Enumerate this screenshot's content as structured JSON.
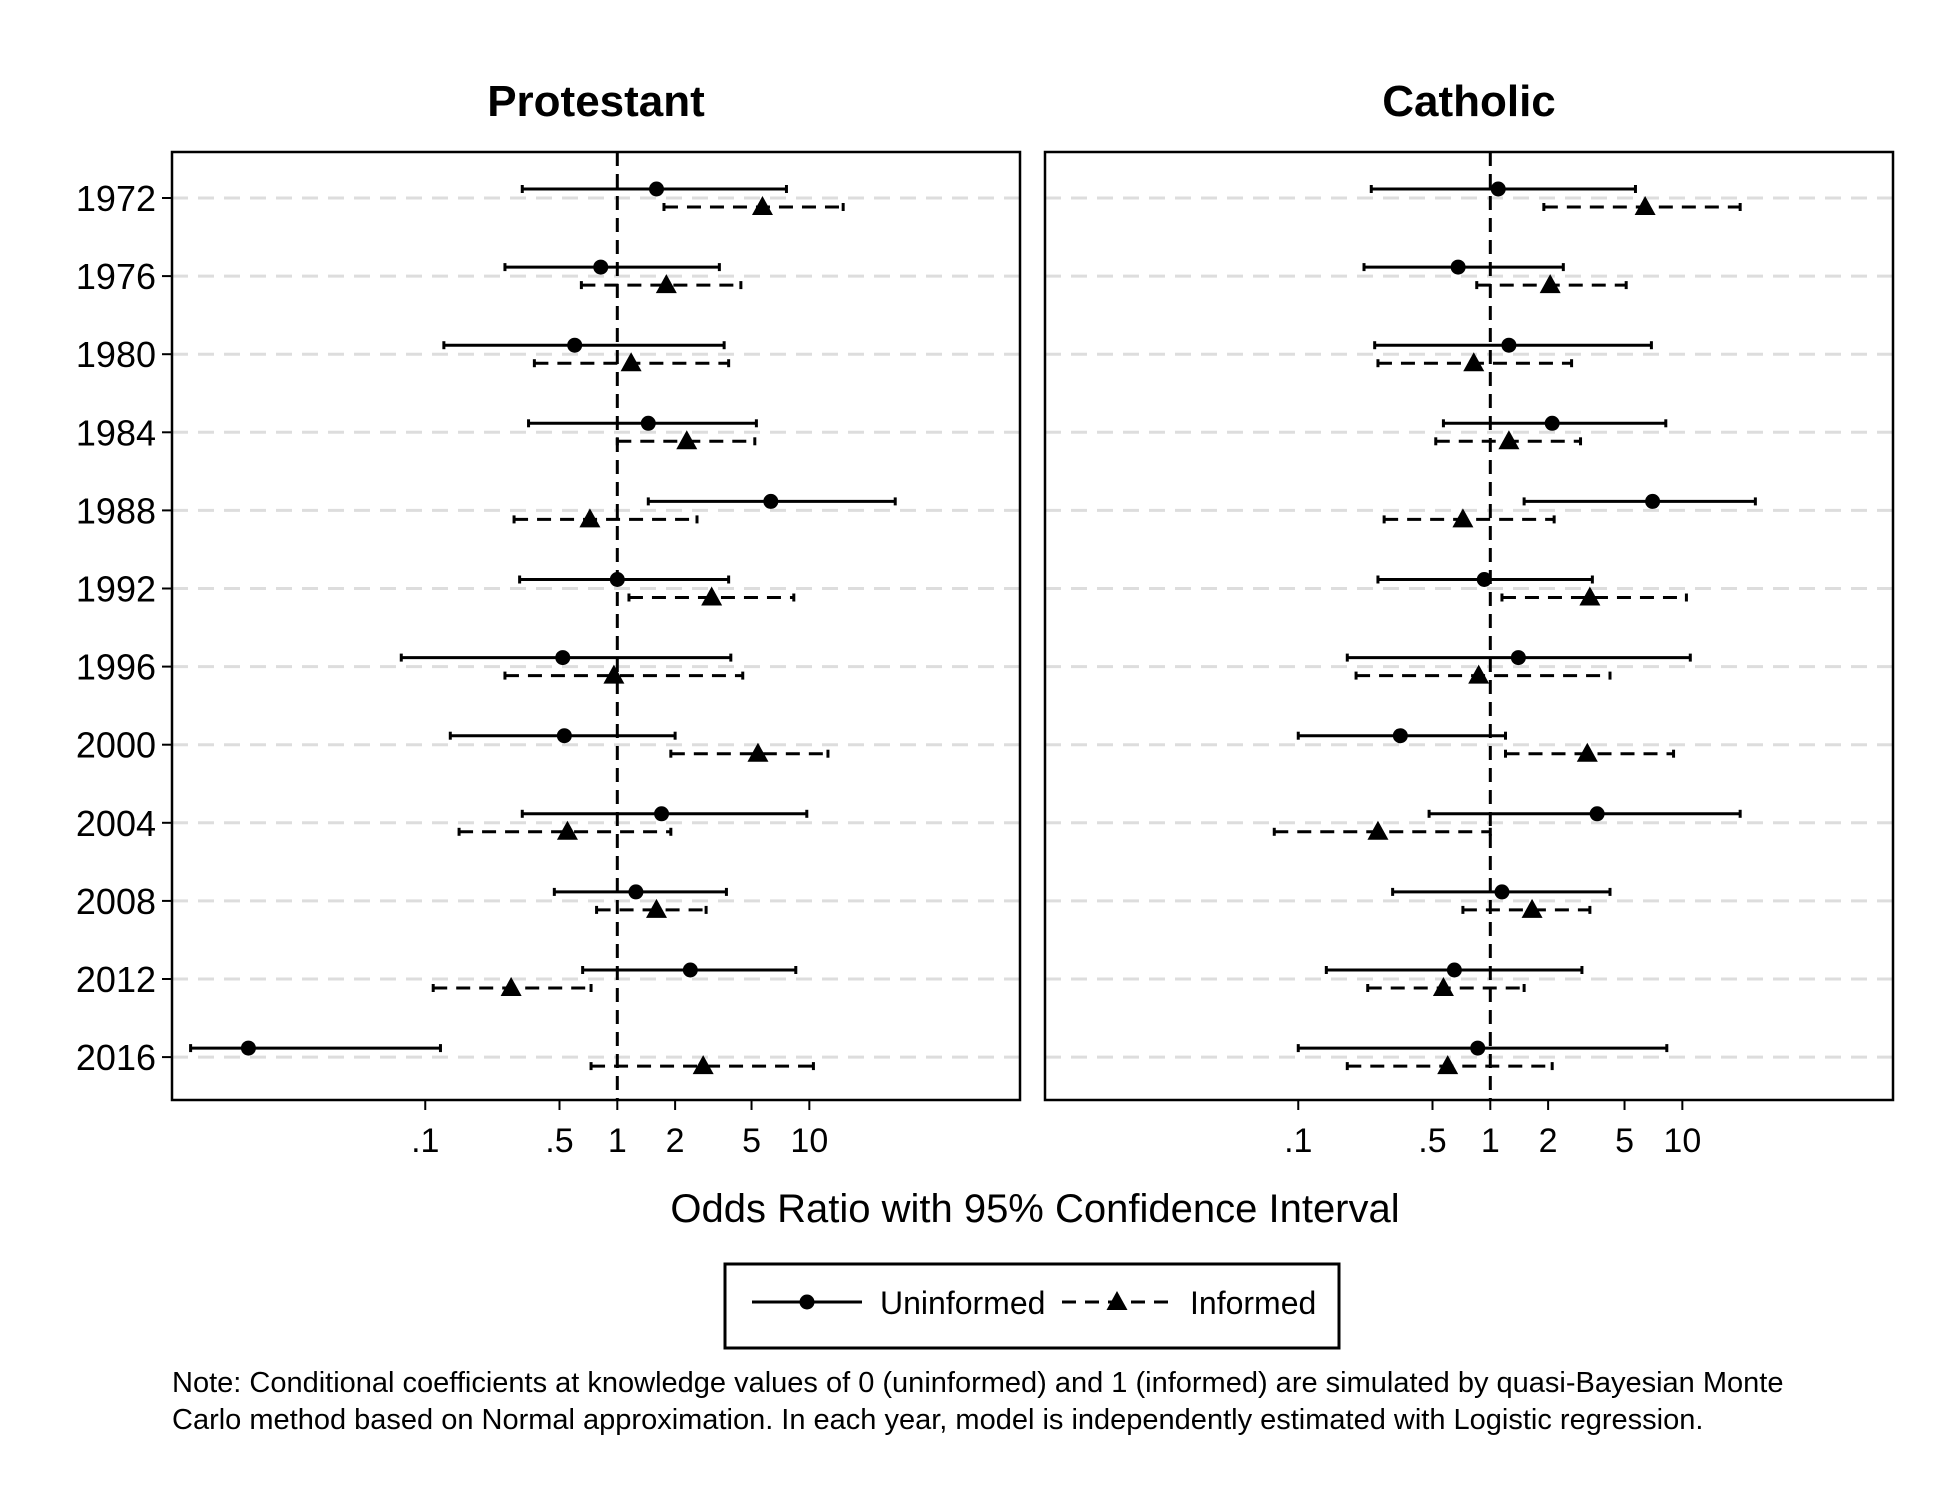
{
  "chart_data": {
    "type": "scatter",
    "subtype": "forest-plot",
    "x_scale": "log",
    "xlabel": "Odds Ratio with 95% Confidence Interval",
    "x_ticks": [
      {
        "value": 0.1,
        "label": ".1"
      },
      {
        "value": 0.5,
        "label": ".5"
      },
      {
        "value": 1,
        "label": "1"
      },
      {
        "value": 2,
        "label": "2"
      },
      {
        "value": 5,
        "label": "5"
      },
      {
        "value": 10,
        "label": "10"
      }
    ],
    "xlim": [
      0.0048,
      125
    ],
    "reference_line": 1,
    "years": [
      "1972",
      "1976",
      "1980",
      "1984",
      "1988",
      "1992",
      "1996",
      "2000",
      "2004",
      "2008",
      "2012",
      "2016"
    ],
    "legend": {
      "position": "bottom",
      "entries": [
        {
          "series": "uninformed",
          "label": "Uninformed"
        },
        {
          "series": "informed",
          "label": "Informed"
        }
      ]
    },
    "panels": [
      {
        "title": "Protestant",
        "uninformed": {
          "est": [
            1.6,
            0.82,
            0.6,
            1.45,
            6.3,
            1.0,
            0.52,
            0.53,
            1.7,
            1.25,
            2.4,
            0.012
          ],
          "lo": [
            0.32,
            0.26,
            0.125,
            0.345,
            1.45,
            0.31,
            0.075,
            0.135,
            0.32,
            0.47,
            0.66,
            0.006
          ],
          "hi": [
            7.6,
            3.4,
            3.6,
            5.3,
            28,
            3.8,
            3.9,
            2.0,
            9.7,
            3.7,
            8.5,
            0.12
          ]
        },
        "informed": {
          "est": [
            5.7,
            1.8,
            1.18,
            2.3,
            0.72,
            3.1,
            0.96,
            5.4,
            0.55,
            1.6,
            0.28,
            2.8
          ],
          "lo": [
            1.75,
            0.65,
            0.37,
            1.0,
            0.29,
            1.15,
            0.26,
            1.9,
            0.15,
            0.78,
            0.11,
            0.73
          ],
          "hi": [
            15,
            4.4,
            3.8,
            5.2,
            2.6,
            8.3,
            4.5,
            12.5,
            1.9,
            2.9,
            0.73,
            10.5
          ]
        }
      },
      {
        "title": "Catholic",
        "uninformed": {
          "est": [
            1.1,
            0.68,
            1.25,
            2.1,
            7.0,
            0.93,
            1.4,
            0.34,
            3.6,
            1.15,
            0.65,
            0.86
          ],
          "lo": [
            0.24,
            0.22,
            0.25,
            0.57,
            1.5,
            0.26,
            0.18,
            0.1,
            0.48,
            0.31,
            0.14,
            0.1
          ],
          "hi": [
            5.7,
            2.4,
            6.9,
            8.2,
            24,
            3.4,
            11,
            1.2,
            20,
            4.2,
            3.0,
            8.3
          ]
        },
        "informed": {
          "est": [
            6.4,
            2.05,
            0.82,
            1.25,
            0.72,
            3.3,
            0.87,
            3.2,
            0.26,
            1.65,
            0.57,
            0.6
          ],
          "lo": [
            1.9,
            0.85,
            0.26,
            0.52,
            0.28,
            1.15,
            0.2,
            1.2,
            0.075,
            0.72,
            0.23,
            0.18
          ],
          "hi": [
            20,
            5.1,
            2.65,
            2.95,
            2.15,
            10.5,
            4.2,
            9.0,
            1.0,
            3.3,
            1.5,
            2.1
          ]
        }
      }
    ]
  },
  "note": "Note: Conditional coefficients at knowledge values of 0 (uninformed) and 1 (informed) are simulated by quasi-Bayesian Monte\nCarlo method based on Normal approximation. In each year, model is independently estimated with Logistic regression."
}
